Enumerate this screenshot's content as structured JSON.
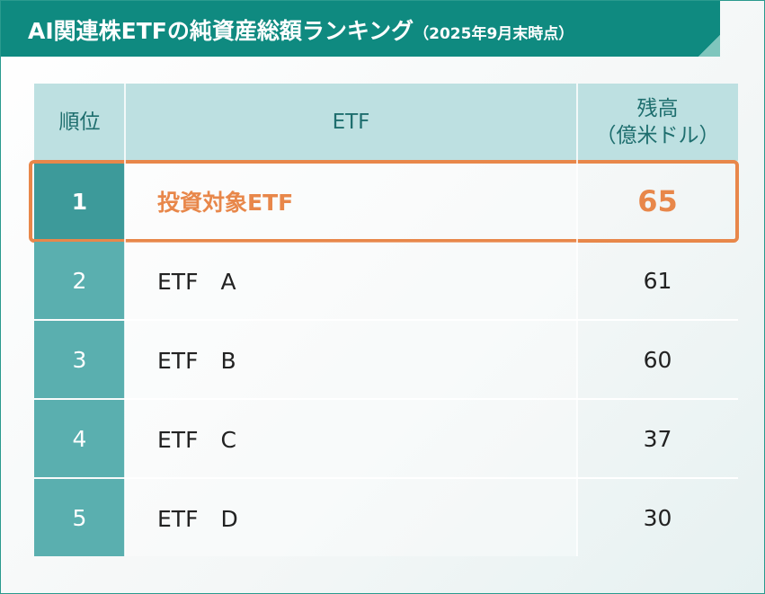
{
  "header": {
    "title": "AI関連株ETFの純資産総額ランキング",
    "subtitle": "（2025年9月末時点）"
  },
  "table": {
    "columns": [
      "順位",
      "ETF",
      [
        "残高",
        "（億米ドル）"
      ]
    ],
    "rows": [
      [
        1,
        "投資対象ETF",
        65
      ],
      [
        2,
        "ETF　A",
        61
      ],
      [
        3,
        "ETF　B",
        60
      ],
      [
        4,
        "ETF　C",
        37
      ],
      [
        5,
        "ETF　D",
        30
      ]
    ],
    "highlight_row": 0
  }
}
